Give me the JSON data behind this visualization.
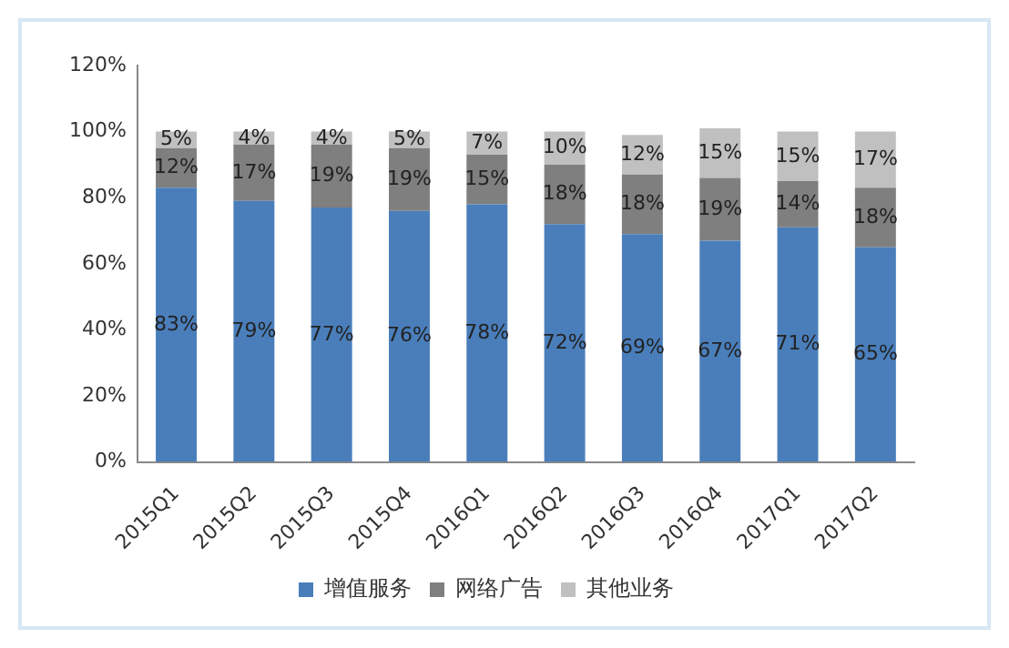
{
  "chart_data": {
    "type": "bar",
    "stacked": true,
    "categories": [
      "2015Q1",
      "2015Q2",
      "2015Q3",
      "2015Q4",
      "2016Q1",
      "2016Q2",
      "2016Q3",
      "2016Q4",
      "2017Q1",
      "2017Q2"
    ],
    "series": [
      {
        "name": "增值服务",
        "color": "#4a7ebb",
        "values": [
          83,
          79,
          77,
          76,
          78,
          72,
          69,
          67,
          71,
          65
        ],
        "value_labels": [
          "83%",
          "79%",
          "77%",
          "76%",
          "78%",
          "72%",
          "69%",
          "67%",
          "71%",
          "65%"
        ]
      },
      {
        "name": "网络广告",
        "color": "#7f7f7f",
        "values": [
          12,
          17,
          19,
          19,
          15,
          18,
          18,
          19,
          14,
          18
        ],
        "value_labels": [
          "12%",
          "17%",
          "19%",
          "19%",
          "15%",
          "18%",
          "18%",
          "19%",
          "14%",
          "18%"
        ]
      },
      {
        "name": "其他业务",
        "color": "#c0c0c0",
        "values": [
          5,
          4,
          4,
          5,
          7,
          10,
          12,
          15,
          15,
          17
        ],
        "value_labels": [
          "5%",
          "4%",
          "4%",
          "5%",
          "7%",
          "10%",
          "12%",
          "15%",
          "15%",
          "17%"
        ]
      }
    ],
    "ylim": [
      0,
      120
    ],
    "yticks": [
      {
        "value": 0,
        "label": "0%"
      },
      {
        "value": 20,
        "label": "20%"
      },
      {
        "value": 40,
        "label": "40%"
      },
      {
        "value": 60,
        "label": "60%"
      },
      {
        "value": 80,
        "label": "80%"
      },
      {
        "value": 100,
        "label": "100%"
      },
      {
        "value": 120,
        "label": "120%"
      }
    ],
    "grid": false,
    "legend": "bottom"
  }
}
